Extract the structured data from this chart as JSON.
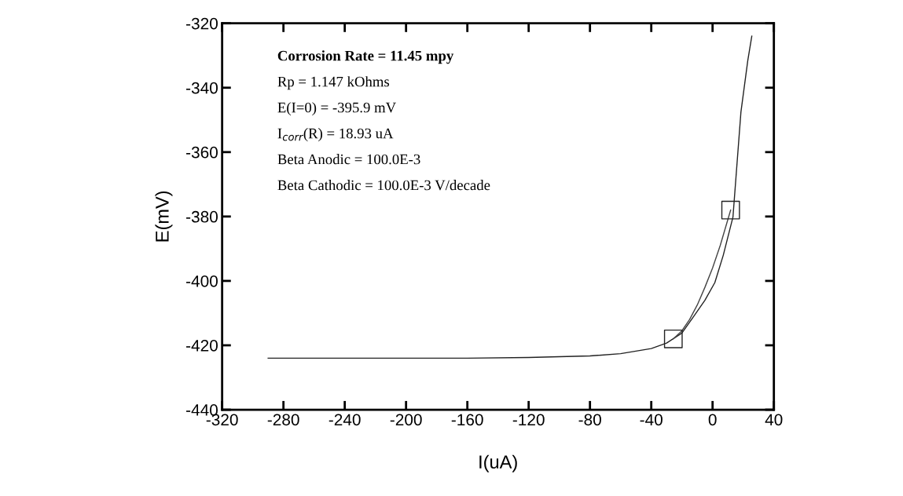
{
  "chart_data": {
    "type": "line",
    "xlabel": "I(uA)",
    "ylabel": "E(mV)",
    "xlim": [
      -320,
      40
    ],
    "xticks": [
      -320,
      -280,
      -240,
      -200,
      -160,
      -120,
      -80,
      -40,
      0,
      40
    ],
    "ylim": [
      -440,
      -320
    ],
    "yticks": [
      -320,
      -340,
      -360,
      -380,
      -400,
      -420,
      -440
    ],
    "grid": false,
    "marker": "none",
    "line_style": "solid",
    "series": [
      {
        "color": "#222222",
        "x": [
          -290,
          -240,
          -200,
          -160,
          -120,
          -80,
          -60,
          -40,
          -30,
          -20,
          -12.3,
          -5,
          1.5,
          7,
          13.3,
          18.5,
          23,
          25.6
        ],
        "values": [
          -424,
          -424,
          -424,
          -424,
          -423.8,
          -423.3,
          -422.6,
          -421,
          -419.3,
          -416.2,
          -411,
          -406,
          -400.5,
          -392,
          -380.2,
          -347.6,
          -331.5,
          -324
        ]
      },
      {
        "type": "line",
        "color": "#444444",
        "x": [
          -25.6,
          -20,
          -15,
          -10,
          -5,
          0,
          5,
          11.8
        ],
        "values": [
          -418,
          -415.5,
          -412,
          -407.5,
          -402,
          -396,
          -389,
          -378
        ]
      },
      {
        "type": "scatter",
        "color": "#222222",
        "marker": "square",
        "x": [
          -25.6,
          11.8
        ],
        "values": [
          -418,
          -378
        ]
      }
    ],
    "annotations": [
      "Corrosion Rate = 11.45 mpy",
      "Rp = 1.147 kOhms",
      "E(I=0) = -395.9 mV",
      "I$_{corr}$(R) = 18.93 uA",
      "Beta Anodic = 100.0E-3",
      "Beta Cathodic = 100.0E-3 V/decade"
    ]
  }
}
